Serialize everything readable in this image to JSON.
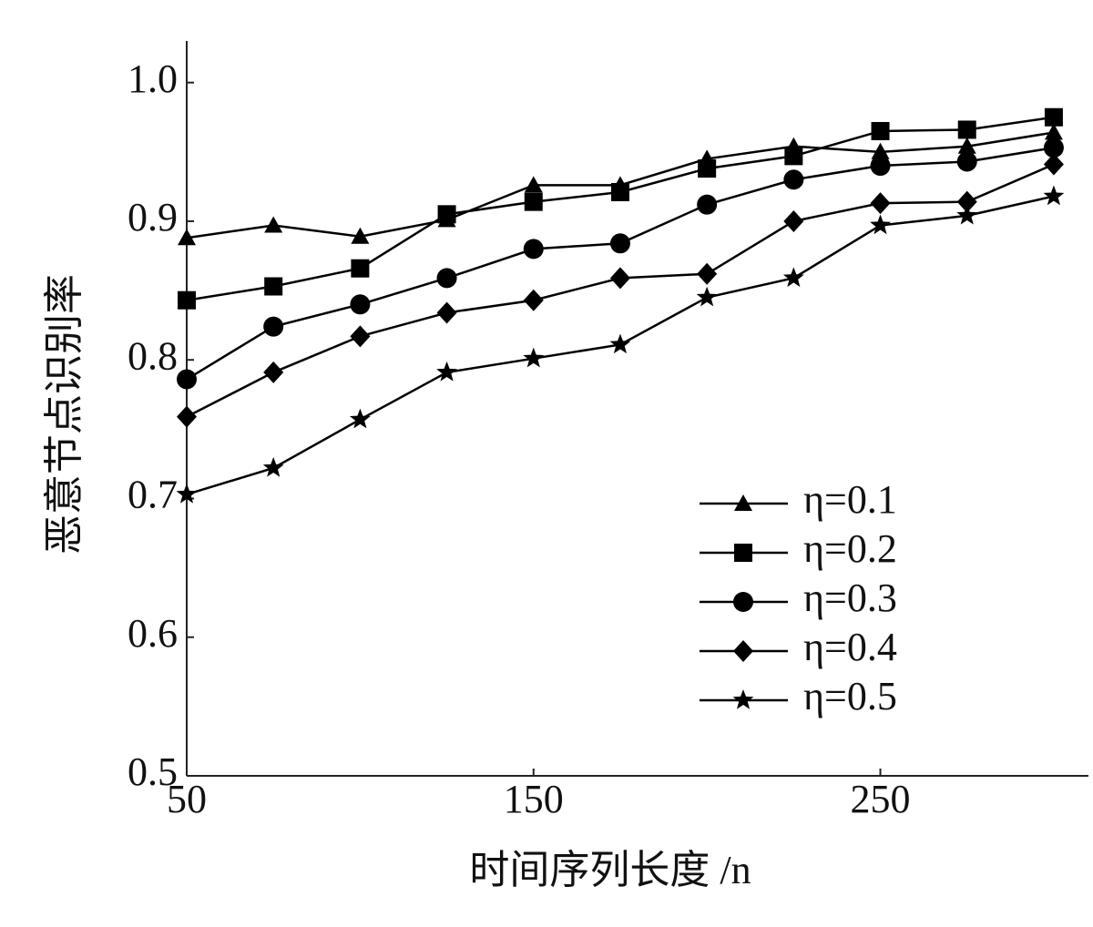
{
  "chart_data": {
    "type": "line",
    "y_label": "恶意节点识别率",
    "x_label": "时间序列长度 /n",
    "x": [
      50,
      75,
      100,
      125,
      150,
      175,
      200,
      225,
      250,
      275,
      300
    ],
    "xlim": [
      50,
      310
    ],
    "xticks": [
      50,
      150,
      250
    ],
    "ylim": [
      0.5,
      1.03
    ],
    "yticks": [
      0.5,
      0.6,
      0.7,
      0.8,
      0.9,
      {
        "value": 1,
        "label": "1.0"
      }
    ],
    "grid": false,
    "legend": "lower right",
    "series": [
      {
        "name": "η=0.1",
        "color": "#000000",
        "marker": "triangle",
        "values": [
          0.888,
          0.897,
          0.889,
          0.901,
          0.926,
          0.926,
          0.945,
          0.954,
          0.95,
          0.954,
          0.964
        ]
      },
      {
        "name": "η=0.2",
        "color": "#000000",
        "marker": "square",
        "values": [
          0.843,
          0.853,
          0.866,
          0.905,
          0.914,
          0.921,
          0.938,
          0.947,
          0.965,
          0.966,
          0.975
        ]
      },
      {
        "name": "η=0.3",
        "color": "#000000",
        "marker": "circle",
        "values": [
          0.786,
          0.824,
          0.84,
          0.859,
          0.88,
          0.884,
          0.912,
          0.93,
          0.94,
          0.943,
          0.953
        ]
      },
      {
        "name": "η=0.4",
        "color": "#000000",
        "marker": "diamond",
        "values": [
          0.759,
          0.791,
          0.817,
          0.834,
          0.843,
          0.859,
          0.862,
          0.9,
          0.913,
          0.914,
          0.941
        ]
      },
      {
        "name": "η=0.5",
        "color": "#000000",
        "marker": "star",
        "values": [
          0.703,
          0.722,
          0.757,
          0.791,
          0.801,
          0.811,
          0.845,
          0.859,
          0.897,
          0.904,
          0.918
        ]
      }
    ]
  }
}
